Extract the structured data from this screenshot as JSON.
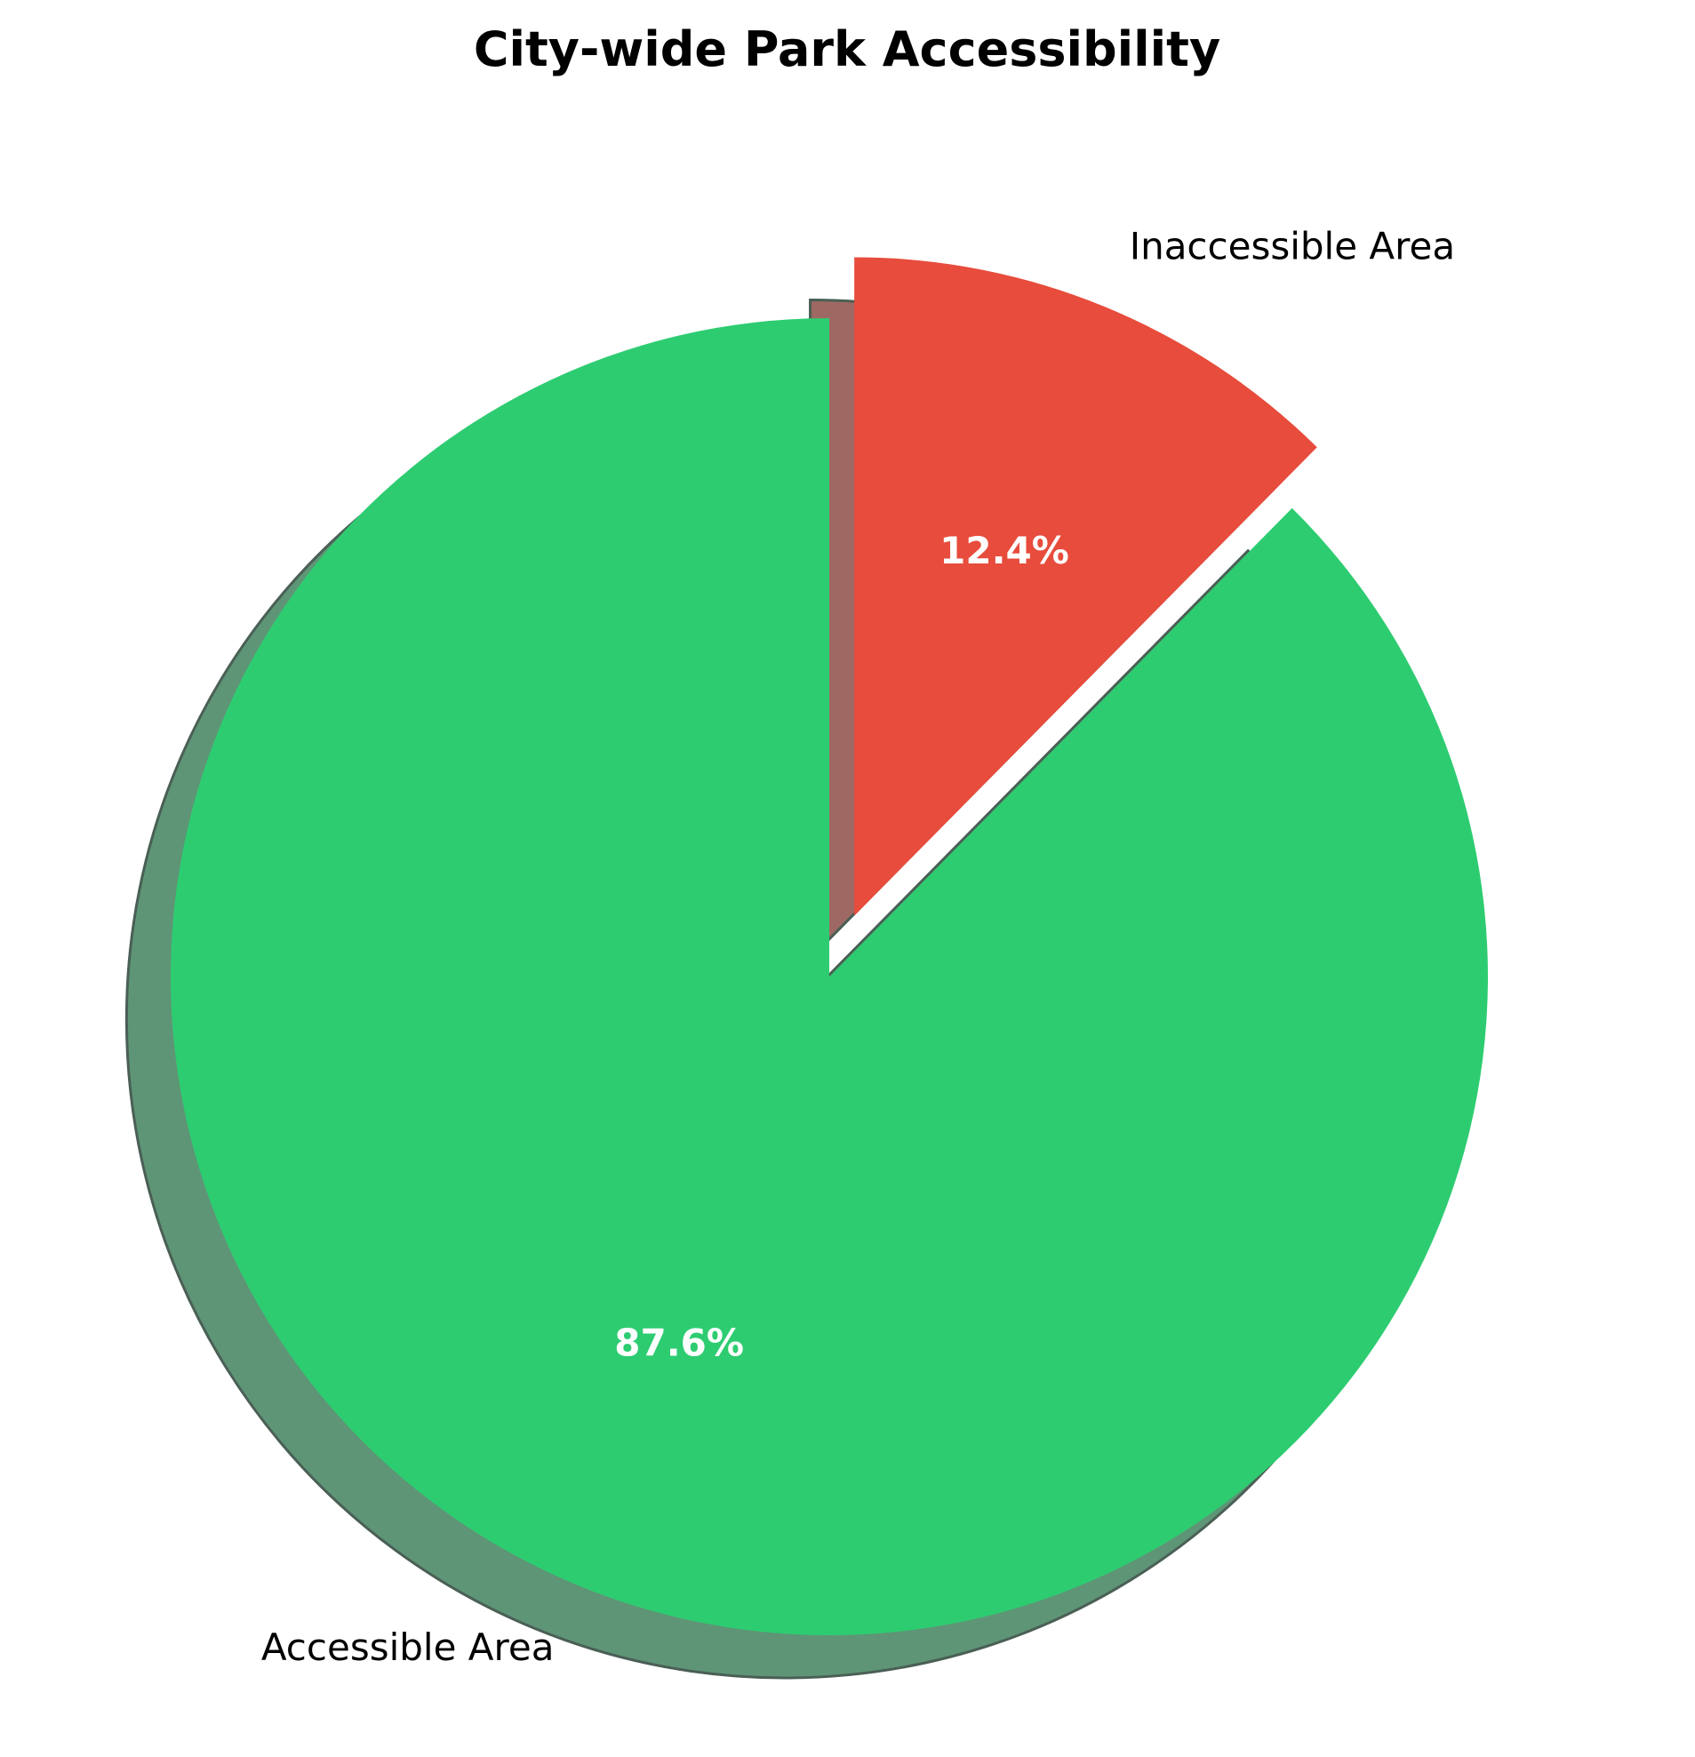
{
  "chart_data": {
    "type": "pie",
    "title": "City-wide Park Accessibility",
    "slices": [
      {
        "label": "Accessible Area",
        "value": 87.6,
        "pct_label": "87.6%",
        "color": "#2ecc71",
        "exploded": false
      },
      {
        "label": "Inaccessible Area",
        "value": 12.4,
        "pct_label": "12.4%",
        "color": "#e74c3c",
        "exploded": true
      }
    ],
    "start": "top",
    "direction": "clockwise",
    "shadow": true,
    "legend": "none"
  }
}
